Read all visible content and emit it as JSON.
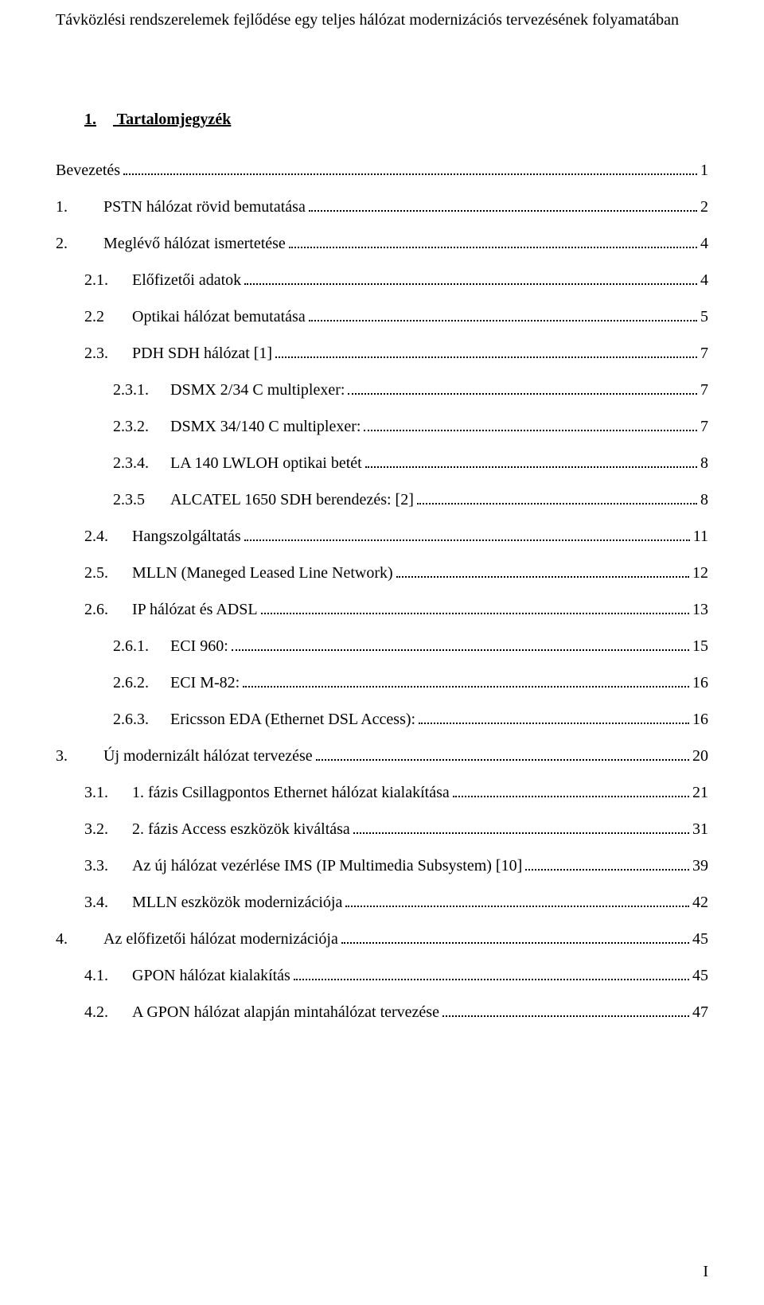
{
  "colors": {
    "text": "#000000",
    "background": "#ffffff",
    "dot": "#000000"
  },
  "typography": {
    "font_family": "Times New Roman",
    "body_fontsize_pt": 15,
    "heading_fontsize_pt": 15,
    "heading_weight": "bold",
    "heading_underline": true
  },
  "header_title": "Távközlési rendszerelemek fejlődése egy teljes hálózat modernizációs tervezésének folyamatában",
  "toc_heading_number": "1.",
  "toc_heading_text": "Tartalomjegyzék",
  "toc": [
    {
      "indent": 0,
      "num": "",
      "label": "Bevezetés",
      "page": "1"
    },
    {
      "indent": 0,
      "num": "1.",
      "label": "PSTN hálózat rövid bemutatása",
      "page": "2"
    },
    {
      "indent": 0,
      "num": "2.",
      "label": "Meglévő hálózat ismertetése",
      "page": "4"
    },
    {
      "indent": 1,
      "num": "2.1.",
      "label": "Előfizetői adatok",
      "page": "4"
    },
    {
      "indent": 1,
      "num": "2.2",
      "label": "Optikai hálózat bemutatása",
      "page": "5"
    },
    {
      "indent": 1,
      "num": "2.3.",
      "label": "PDH SDH hálózat [1]",
      "page": "7"
    },
    {
      "indent": 2,
      "num": "2.3.1.",
      "label": "DSMX 2/34 C multiplexer:",
      "page": "7"
    },
    {
      "indent": 2,
      "num": "2.3.2.",
      "label": "DSMX 34/140 C multiplexer:",
      "page": "7"
    },
    {
      "indent": 2,
      "num": "2.3.4.",
      "label": "LA 140 LWLOH optikai betét",
      "page": "8"
    },
    {
      "indent": 2,
      "num": "2.3.5",
      "label": "ALCATEL 1650 SDH berendezés: [2]",
      "page": "8"
    },
    {
      "indent": 1,
      "num": "2.4.",
      "label": "Hangszolgáltatás",
      "page": "11"
    },
    {
      "indent": 1,
      "num": "2.5.",
      "label": "MLLN (Maneged Leased Line Network)",
      "page": "12"
    },
    {
      "indent": 1,
      "num": "2.6.",
      "label": "IP hálózat és ADSL",
      "page": "13"
    },
    {
      "indent": 2,
      "num": "2.6.1.",
      "label": "ECI 960:",
      "page": "15"
    },
    {
      "indent": 2,
      "num": "2.6.2.",
      "label": "ECI M-82:",
      "page": "16"
    },
    {
      "indent": 2,
      "num": "2.6.3.",
      "label": "Ericsson EDA (Ethernet DSL Access):",
      "page": "16"
    },
    {
      "indent": 0,
      "num": "3.",
      "label": "Új modernizált hálózat tervezése",
      "page": "20"
    },
    {
      "indent": 1,
      "num": "3.1.",
      "label": "1. fázis Csillagpontos Ethernet hálózat kialakítása",
      "page": "21"
    },
    {
      "indent": 1,
      "num": "3.2.",
      "label": "2. fázis Access eszközök kiváltása",
      "page": "31"
    },
    {
      "indent": 1,
      "num": "3.3.",
      "label": "Az új hálózat vezérlése IMS (IP Multimedia Subsystem) [10]",
      "page": "39"
    },
    {
      "indent": 1,
      "num": "3.4.",
      "label": "MLLN eszközök modernizációja",
      "page": "42"
    },
    {
      "indent": 0,
      "num": "4.",
      "label": "Az előfizetői hálózat modernizációja",
      "page": "45"
    },
    {
      "indent": 1,
      "num": "4.1.",
      "label": "GPON hálózat kialakítás",
      "page": "45"
    },
    {
      "indent": 1,
      "num": "4.2.",
      "label": "A GPON hálózat alapján mintahálózat tervezése",
      "page": "47"
    }
  ],
  "page_number": "I"
}
